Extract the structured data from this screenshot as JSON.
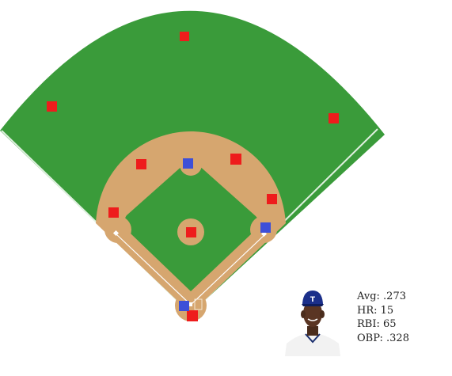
{
  "colors": {
    "grass": "#3a9b3a",
    "dirt": "#d6a66f",
    "line": "#ffffff",
    "fielder_team": "#ee1c1c",
    "batting_team": "#3d4fd8"
  },
  "player": {
    "photo_icon": "player-headshot-icon",
    "cap_logo": "T",
    "stats": [
      {
        "label": "Avg",
        "value": ".273"
      },
      {
        "label": "HR",
        "value": "15"
      },
      {
        "label": "RBI",
        "value": "65"
      },
      {
        "label": "OBP",
        "value": ".328"
      }
    ]
  }
}
